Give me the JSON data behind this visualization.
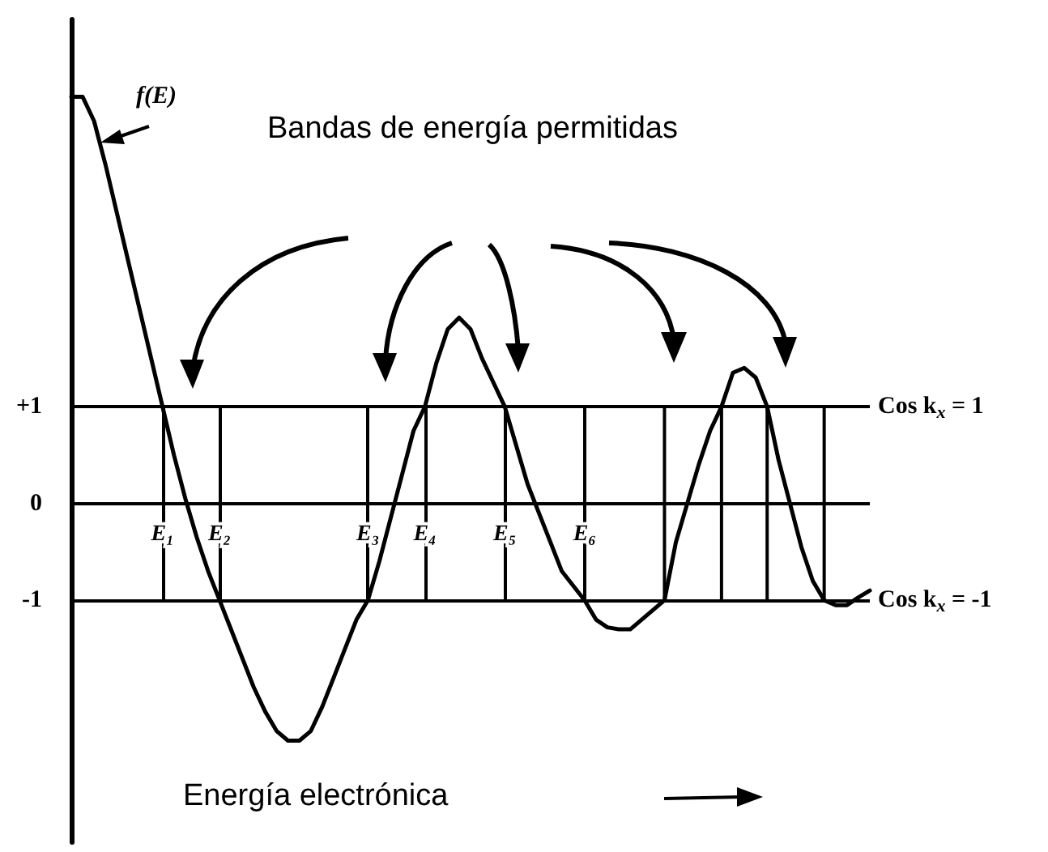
{
  "chart_data": {
    "type": "line",
    "xlabel": "Energía electrónica",
    "annotations": [
      "f(E)",
      "Bandas de energía permitidas"
    ],
    "categories": [
      null,
      null,
      null,
      null,
      null,
      null,
      null,
      null,
      "E₁",
      null,
      null,
      null,
      null,
      "E₂",
      null,
      null,
      null,
      null,
      null,
      null,
      null,
      null,
      null,
      null,
      null,
      null,
      "E₃",
      null,
      null,
      null,
      null,
      "E₄",
      null,
      null,
      null,
      null,
      null,
      null,
      "E₅",
      null,
      null,
      null,
      null,
      null,
      null,
      "E₆",
      null,
      null,
      null,
      null,
      null,
      null,
      null,
      null,
      null,
      null,
      null,
      null,
      null,
      null,
      null,
      null,
      null,
      null,
      null,
      null,
      null,
      null,
      null,
      null,
      null
    ],
    "series": [
      {
        "color": "#000000",
        "values": [
          4.2,
          4.2,
          3.95,
          3.5,
          3.0,
          2.5,
          2.0,
          1.5,
          1.0,
          0.5,
          0.05,
          -0.35,
          -0.7,
          -1.0,
          -1.3,
          -1.6,
          -1.9,
          -2.15,
          -2.35,
          -2.45,
          -2.45,
          -2.35,
          -2.1,
          -1.8,
          -1.5,
          -1.2,
          -1.0,
          -0.6,
          -0.15,
          0.3,
          0.75,
          1.0,
          1.45,
          1.8,
          1.92,
          1.8,
          1.5,
          1.25,
          1.0,
          0.6,
          0.2,
          -0.1,
          -0.4,
          -0.7,
          -0.85,
          -1.0,
          -1.2,
          -1.28,
          -1.3,
          -1.3,
          -1.2,
          -1.1,
          -1.0,
          -0.4,
          0.0,
          0.4,
          0.75,
          1.0,
          1.35,
          1.4,
          1.3,
          1.0,
          0.45,
          0.0,
          -0.45,
          -0.8,
          -1.0,
          -1.05,
          -1.05,
          -0.97,
          -0.9
        ]
      }
    ],
    "ylim": [
      -3.5,
      5
    ],
    "yticks": [
      {
        "value": 1,
        "label": "+1"
      },
      0,
      -1
    ],
    "marker": "none",
    "line_style": "solid",
    "ref_lines": [
      {
        "axis": "y",
        "value": 1,
        "label": "Cos k$_{x}$ = 1"
      },
      {
        "axis": "y",
        "value": 0
      },
      {
        "axis": "y",
        "value": -1,
        "label": "Cos k$_{x}$ = -1"
      },
      {
        "axis": "x",
        "value": "E₁"
      },
      {
        "axis": "x",
        "value": "E₂"
      },
      {
        "axis": "x",
        "value": "E₃"
      },
      {
        "axis": "x",
        "value": "E₄"
      },
      {
        "axis": "x",
        "value": "E₅"
      },
      {
        "axis": "x",
        "value": "E₆"
      }
    ]
  }
}
